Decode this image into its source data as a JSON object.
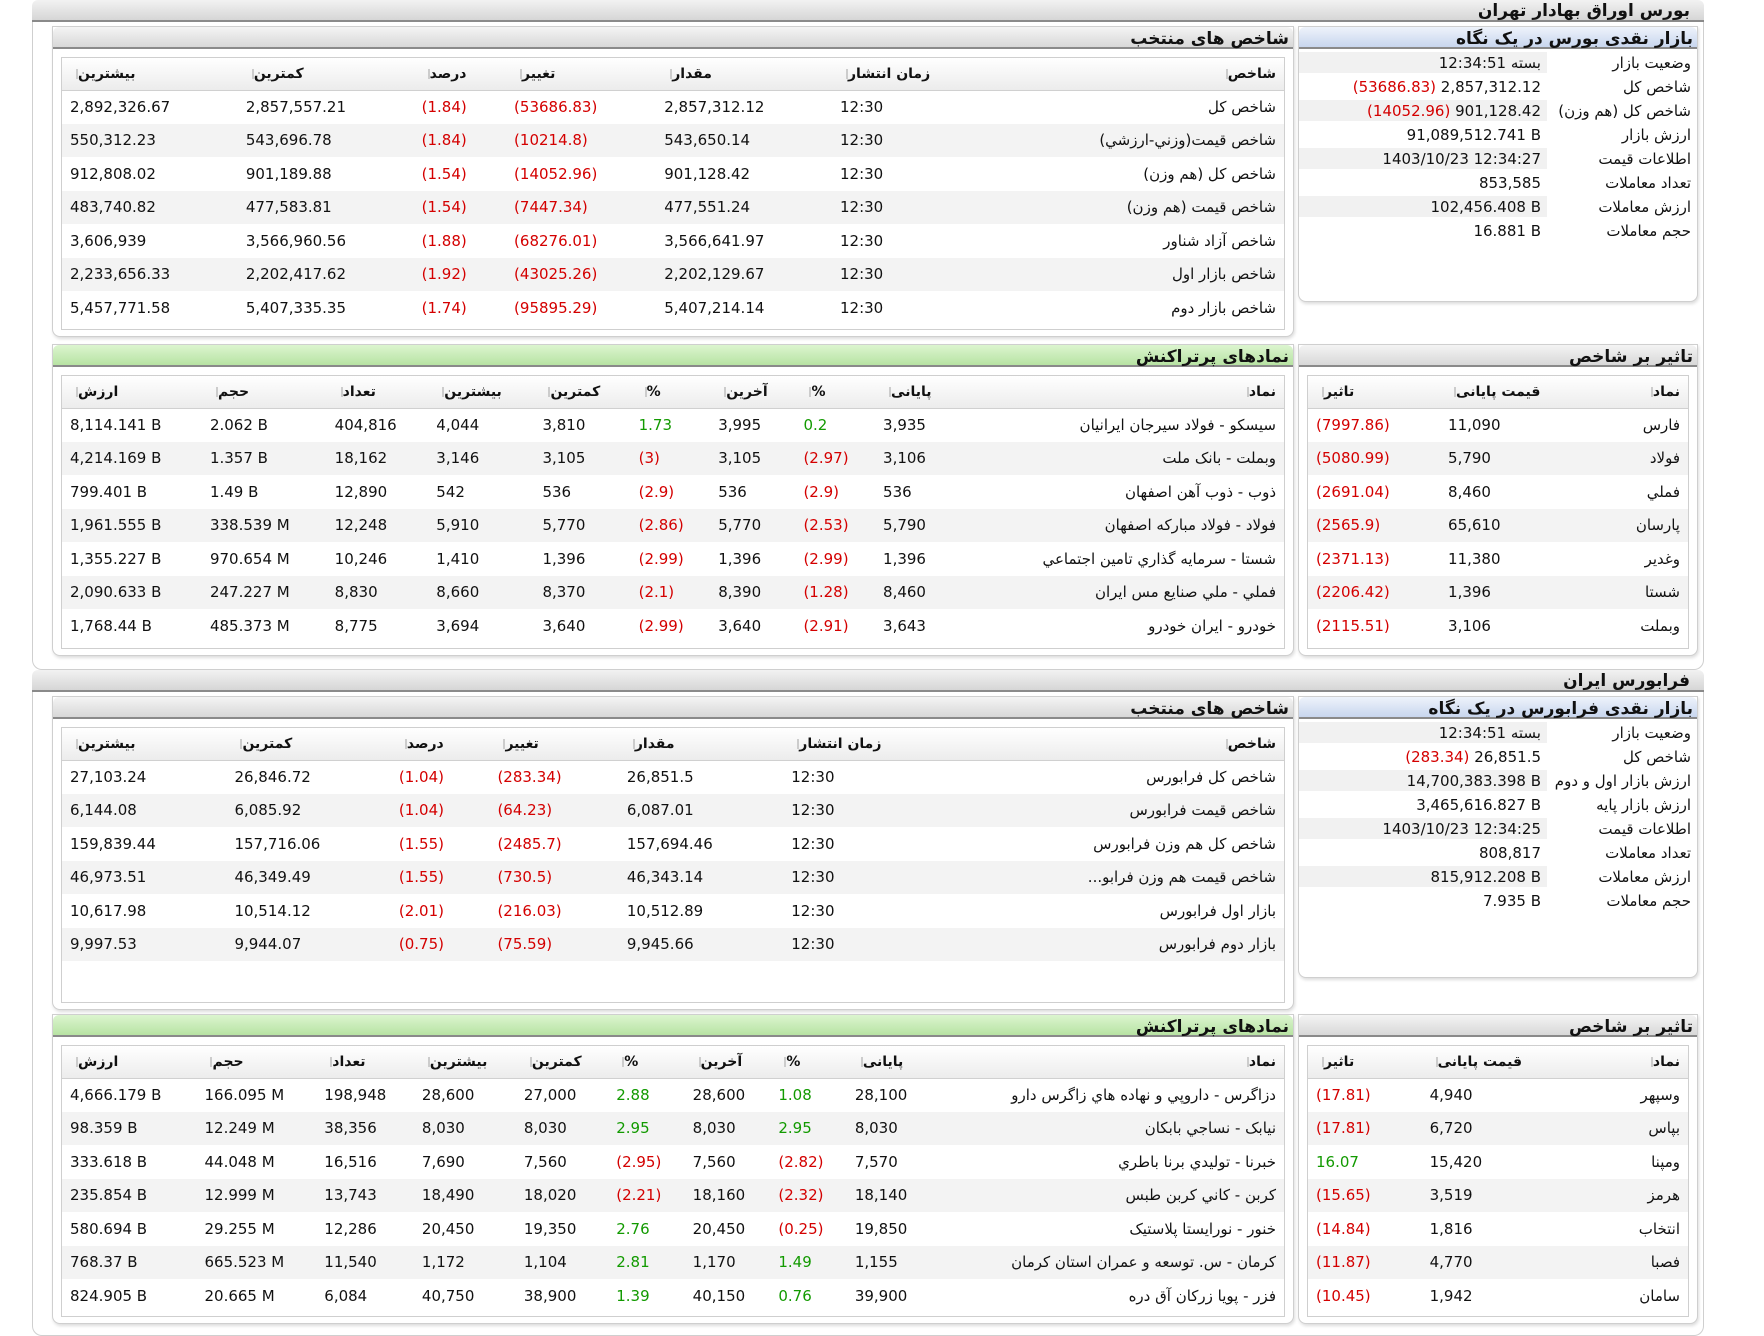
{
  "colors": {
    "negative": "#d40000",
    "positive": "#129a00",
    "header_green": "#b7e3a3",
    "header_blue": "#c8d6ee"
  },
  "bourse": {
    "title": "بورس اوراق بهادار تهران",
    "glance": {
      "title": "بازار نقدی بورس در یک نگاه",
      "rows": [
        {
          "k": "وضعیت بازار",
          "v": "بسته 12:34:51",
          "neg": ""
        },
        {
          "k": "شاخص کل",
          "v": "2,857,312.12",
          "neg": "(53686.83)"
        },
        {
          "k": "شاخص کل (هم وزن)",
          "v": "901,128.42",
          "neg": "(14052.96)"
        },
        {
          "k": "ارزش بازار",
          "v": "91,089,512.741 B",
          "neg": ""
        },
        {
          "k": "اطلاعات قیمت",
          "v": "1403/10/23 12:34:27",
          "neg": ""
        },
        {
          "k": "تعداد معاملات",
          "v": "853,585",
          "neg": ""
        },
        {
          "k": "ارزش معاملات",
          "v": "102,456.408 B",
          "neg": ""
        },
        {
          "k": "حجم معاملات",
          "v": "16.881 B",
          "neg": ""
        }
      ]
    },
    "indices": {
      "title": "شاخص های منتخب",
      "headers": [
        "شاخص",
        "زمان انتشار",
        "مقدار",
        "تغییر",
        "درصد",
        "کمترین",
        "بیشترین"
      ],
      "rows": [
        [
          "شاخص کل",
          "12:30",
          "2,857,312.12",
          "(53686.83)",
          "(1.84)",
          "2,857,557.21",
          "2,892,326.67"
        ],
        [
          "شاخص قیمت(وزني-ارزشي)",
          "12:30",
          "543,650.14",
          "(10214.8)",
          "(1.84)",
          "543,696.78",
          "550,312.23"
        ],
        [
          "شاخص کل (هم وزن)",
          "12:30",
          "901,128.42",
          "(14052.96)",
          "(1.54)",
          "901,189.88",
          "912,808.02"
        ],
        [
          "شاخص قیمت (هم وزن)",
          "12:30",
          "477,551.24",
          "(7447.34)",
          "(1.54)",
          "477,583.81",
          "483,740.82"
        ],
        [
          "شاخص آزاد شناور",
          "12:30",
          "3,566,641.97",
          "(68276.01)",
          "(1.88)",
          "3,566,960.56",
          "3,606,939"
        ],
        [
          "شاخص بازار اول",
          "12:30",
          "2,202,129.67",
          "(43025.26)",
          "(1.92)",
          "2,202,417.62",
          "2,233,656.33"
        ],
        [
          "شاخص بازار دوم",
          "12:30",
          "5,407,214.14",
          "(95895.29)",
          "(1.74)",
          "5,407,335.35",
          "5,457,771.58"
        ]
      ]
    },
    "impact": {
      "title": "تاثیر بر شاخص",
      "headers": [
        "نماد",
        "قیمت پایانی",
        "تاثیر"
      ],
      "rows": [
        [
          "فارس",
          "11,090",
          "(7997.86)"
        ],
        [
          "فولاد",
          "5,790",
          "(5080.99)"
        ],
        [
          "فملي",
          "8,460",
          "(2691.04)"
        ],
        [
          "پارسان",
          "65,610",
          "(2565.9)"
        ],
        [
          "وغدير",
          "11,380",
          "(2371.13)"
        ],
        [
          "شستا",
          "1,396",
          "(2206.42)"
        ],
        [
          "وبملت",
          "3,106",
          "(2115.51)"
        ]
      ]
    },
    "active": {
      "title": "نمادهای پرتراکنش",
      "headers": [
        "نماد",
        "پایانی",
        "%",
        "آخرین",
        "%",
        "کمترین",
        "بیشترین",
        "تعداد",
        "حجم",
        "ارزش"
      ],
      "rows": [
        [
          "سیسکو - فولاد سيرجان ايرانيان",
          "3,935",
          "0.2",
          "3,995",
          "1.73",
          "3,810",
          "4,044",
          "404,816",
          "2.062 B",
          "8,114.141 B"
        ],
        [
          "وبملت - بانک ملت",
          "3,106",
          "(2.97)",
          "3,105",
          "(3)",
          "3,105",
          "3,146",
          "18,162",
          "1.357 B",
          "4,214.169 B"
        ],
        [
          "ذوب - ذوب آهن اصفهان",
          "536",
          "(2.9)",
          "536",
          "(2.9)",
          "536",
          "542",
          "12,890",
          "1.49 B",
          "799.401 B"
        ],
        [
          "فولاد - فولاد مبارکه اصفهان",
          "5,790",
          "(2.53)",
          "5,770",
          "(2.86)",
          "5,770",
          "5,910",
          "12,248",
          "338.539 M",
          "1,961.555 B"
        ],
        [
          "شستا - سرمايه گذاري تامين اجتماعي",
          "1,396",
          "(2.99)",
          "1,396",
          "(2.99)",
          "1,396",
          "1,410",
          "10,246",
          "970.654 M",
          "1,355.227 B"
        ],
        [
          "فملي - ملي صنايع مس ايران",
          "8,460",
          "(1.28)",
          "8,390",
          "(2.1)",
          "8,370",
          "8,660",
          "8,830",
          "247.227 M",
          "2,090.633 B"
        ],
        [
          "خودرو - ايران خودرو",
          "3,643",
          "(2.91)",
          "3,640",
          "(2.99)",
          "3,640",
          "3,694",
          "8,775",
          "485.373 M",
          "1,768.44 B"
        ]
      ]
    }
  },
  "farabourse": {
    "title": "فرابورس ایران",
    "glance": {
      "title": "بازار نقدی فرابورس در یک نگاه",
      "rows": [
        {
          "k": "وضعیت بازار",
          "v": "بسته 12:34:51",
          "neg": ""
        },
        {
          "k": "شاخص کل",
          "v": "26,851.5",
          "neg": "(283.34)"
        },
        {
          "k": "ارزش بازار اول و دوم",
          "v": "14,700,383.398 B",
          "neg": ""
        },
        {
          "k": "ارزش بازار پایه",
          "v": "3,465,616.827 B",
          "neg": ""
        },
        {
          "k": "اطلاعات قیمت",
          "v": "1403/10/23 12:34:25",
          "neg": ""
        },
        {
          "k": "تعداد معاملات",
          "v": "808,817",
          "neg": ""
        },
        {
          "k": "ارزش معاملات",
          "v": "815,912.208 B",
          "neg": ""
        },
        {
          "k": "حجم معاملات",
          "v": "7.935 B",
          "neg": ""
        }
      ]
    },
    "indices": {
      "title": "شاخص های منتخب",
      "headers": [
        "شاخص",
        "زمان انتشار",
        "مقدار",
        "تغییر",
        "درصد",
        "کمترین",
        "بیشترین"
      ],
      "rows": [
        [
          "شاخص کل فرابورس",
          "12:30",
          "26,851.5",
          "(283.34)",
          "(1.04)",
          "26,846.72",
          "27,103.24"
        ],
        [
          "شاخص قیمت فرابورس",
          "12:30",
          "6,087.01",
          "(64.23)",
          "(1.04)",
          "6,085.92",
          "6,144.08"
        ],
        [
          "شاخص کل هم وزن فرابورس",
          "12:30",
          "157,694.46",
          "(2485.7)",
          "(1.55)",
          "157,716.06",
          "159,839.44"
        ],
        [
          "شاخص قیمت هم وزن فرابو...",
          "12:30",
          "46,343.14",
          "(730.5)",
          "(1.55)",
          "46,349.49",
          "46,973.51"
        ],
        [
          "بازار اول فرابورس",
          "12:30",
          "10,512.89",
          "(216.03)",
          "(2.01)",
          "10,514.12",
          "10,617.98"
        ],
        [
          "بازار دوم فرابورس",
          "12:30",
          "9,945.66",
          "(75.59)",
          "(0.75)",
          "9,944.07",
          "9,997.53"
        ]
      ]
    },
    "impact": {
      "title": "تاثیر بر شاخص",
      "headers": [
        "نماد",
        "قیمت پایانی",
        "تاثیر"
      ],
      "rows": [
        [
          "وسپهر",
          "4,940",
          "(17.81)"
        ],
        [
          "بپاس",
          "6,720",
          "(17.81)"
        ],
        [
          "ومپنا",
          "15,420",
          "16.07"
        ],
        [
          "هرمز",
          "3,519",
          "(15.65)"
        ],
        [
          "انتخاب",
          "1,816",
          "(14.84)"
        ],
        [
          "فصبا",
          "4,770",
          "(11.87)"
        ],
        [
          "سامان",
          "1,942",
          "(10.45)"
        ]
      ]
    },
    "active": {
      "title": "نمادهای پرتراکنش",
      "headers": [
        "نماد",
        "پایانی",
        "%",
        "آخرین",
        "%",
        "کمترین",
        "بیشترین",
        "تعداد",
        "حجم",
        "ارزش"
      ],
      "rows": [
        [
          "دزاگرس - داروپي و نهاده هاي زاگرس دارو",
          "28,100",
          "1.08",
          "28,600",
          "2.88",
          "27,000",
          "28,600",
          "198,948",
          "166.095 M",
          "4,666.179 B"
        ],
        [
          "نیابک - نساجي بابکان",
          "8,030",
          "2.95",
          "8,030",
          "2.95",
          "8,030",
          "8,030",
          "38,356",
          "12.249 M",
          "98.359 B"
        ],
        [
          "خبرنا - توليدي برنا باطري",
          "7,570",
          "(2.82)",
          "7,560",
          "(2.95)",
          "7,560",
          "7,690",
          "16,516",
          "44.048 M",
          "333.618 B"
        ],
        [
          "کربن - كاني كربن طبس",
          "18,140",
          "(2.32)",
          "18,160",
          "(2.21)",
          "18,020",
          "18,490",
          "13,743",
          "12.999 M",
          "235.854 B"
        ],
        [
          "خنور - نورايستا پلاستيک",
          "19,850",
          "(0.25)",
          "20,450",
          "2.76",
          "19,350",
          "20,450",
          "12,286",
          "29.255 M",
          "580.694 B"
        ],
        [
          "کرمان - س. توسعه و عمران استان كرمان",
          "1,155",
          "1.49",
          "1,170",
          "2.81",
          "1,104",
          "1,172",
          "11,540",
          "665.523 M",
          "768.37 B"
        ],
        [
          "فزر - پويا زرکان آق دره",
          "39,900",
          "0.76",
          "40,150",
          "1.39",
          "38,900",
          "40,750",
          "6,084",
          "20.665 M",
          "824.905 B"
        ]
      ]
    }
  }
}
